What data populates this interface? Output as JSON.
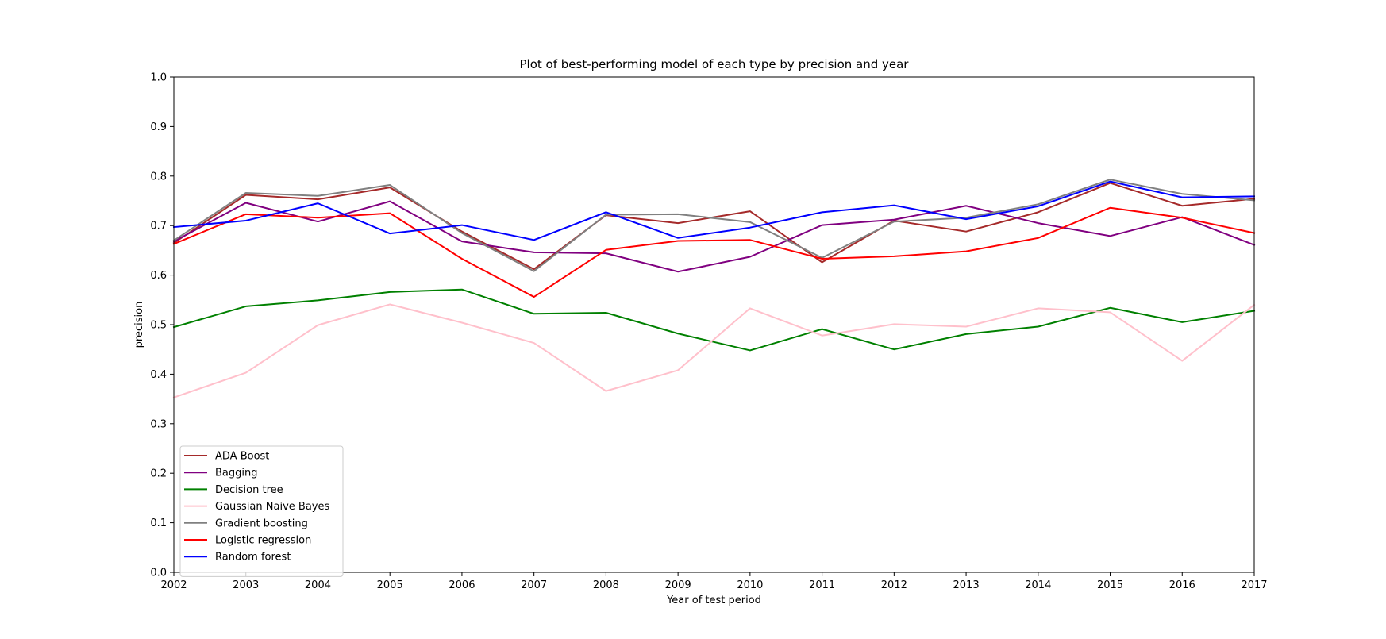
{
  "chart_data": {
    "type": "line",
    "title": "Plot of best-performing model of each type by precision and year",
    "xlabel": "Year of test period",
    "ylabel": "precision",
    "x": [
      2002,
      2003,
      2004,
      2005,
      2006,
      2007,
      2008,
      2009,
      2010,
      2011,
      2012,
      2013,
      2014,
      2015,
      2016,
      2017
    ],
    "xlim": [
      2002,
      2017
    ],
    "ylim": [
      0.0,
      1.0
    ],
    "xticks": [
      "2002",
      "2003",
      "2004",
      "2005",
      "2006",
      "2007",
      "2008",
      "2009",
      "2010",
      "2011",
      "2012",
      "2013",
      "2014",
      "2015",
      "2016",
      "2017"
    ],
    "yticks": [
      "0.0",
      "0.1",
      "0.2",
      "0.3",
      "0.4",
      "0.5",
      "0.6",
      "0.7",
      "0.8",
      "0.9",
      "1.0"
    ],
    "grid": false,
    "legend_position": "lower-left",
    "series": [
      {
        "name": "ADA Boost",
        "color": "#a52a2a",
        "values": [
          0.665,
          0.762,
          0.753,
          0.777,
          0.688,
          0.612,
          0.721,
          0.705,
          0.729,
          0.626,
          0.71,
          0.688,
          0.727,
          0.786,
          0.74,
          0.754
        ]
      },
      {
        "name": "Bagging",
        "color": "#800080",
        "values": [
          0.668,
          0.746,
          0.708,
          0.749,
          0.668,
          0.646,
          0.644,
          0.607,
          0.637,
          0.701,
          0.712,
          0.74,
          0.705,
          0.679,
          0.717,
          0.661
        ]
      },
      {
        "name": "Decision tree",
        "color": "#008000",
        "values": [
          0.495,
          0.537,
          0.549,
          0.566,
          0.571,
          0.522,
          0.524,
          0.482,
          0.448,
          0.491,
          0.45,
          0.481,
          0.496,
          0.534,
          0.505,
          0.528
        ]
      },
      {
        "name": "Gaussian Naive Bayes",
        "color": "#ffc0cb",
        "values": [
          0.353,
          0.403,
          0.499,
          0.541,
          0.504,
          0.463,
          0.366,
          0.408,
          0.533,
          0.478,
          0.501,
          0.496,
          0.533,
          0.525,
          0.427,
          0.54
        ]
      },
      {
        "name": "Gradient boosting",
        "color": "#808080",
        "values": [
          0.67,
          0.766,
          0.76,
          0.782,
          0.685,
          0.608,
          0.722,
          0.723,
          0.707,
          0.635,
          0.708,
          0.716,
          0.743,
          0.793,
          0.764,
          0.751
        ]
      },
      {
        "name": "Logistic regression",
        "color": "#ff0000",
        "values": [
          0.663,
          0.723,
          0.716,
          0.725,
          0.633,
          0.556,
          0.651,
          0.669,
          0.671,
          0.633,
          0.638,
          0.648,
          0.675,
          0.736,
          0.716,
          0.685
        ]
      },
      {
        "name": "Random forest",
        "color": "#0000ff",
        "values": [
          0.697,
          0.71,
          0.745,
          0.684,
          0.701,
          0.671,
          0.727,
          0.675,
          0.696,
          0.727,
          0.741,
          0.713,
          0.739,
          0.789,
          0.757,
          0.759
        ]
      }
    ]
  }
}
